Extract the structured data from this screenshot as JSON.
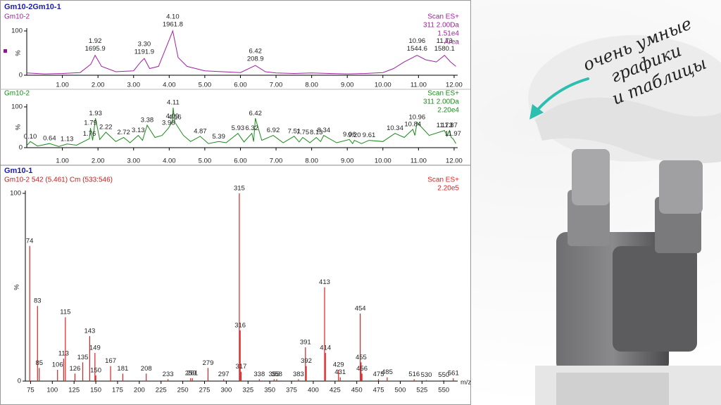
{
  "window_title": "Gm10-2Gm10-1",
  "caption": [
    "очень умные",
    "графики",
    "и таблицы"
  ],
  "chart_data": [
    {
      "type": "line",
      "title": "Gm10-2",
      "info": [
        "Scan ES+",
        "311 2.00Da",
        "1.51e4",
        "Area"
      ],
      "xlim": [
        0,
        12.1
      ],
      "xticks": [
        {
          "value": 1,
          "label": "1.00"
        },
        {
          "value": 2,
          "label": "2.00"
        },
        {
          "value": 3,
          "label": "3.00"
        },
        {
          "value": 4,
          "label": "4.00"
        },
        {
          "value": 5,
          "label": "5.00"
        },
        {
          "value": 6,
          "label": "6.00"
        },
        {
          "value": 7,
          "label": "7.00"
        },
        {
          "value": 8,
          "label": "8.00"
        },
        {
          "value": 9,
          "label": "9.00"
        },
        {
          "value": 10,
          "label": "10.00"
        },
        {
          "value": 11,
          "label": "11.00"
        },
        {
          "value": 12,
          "label": "12.00"
        }
      ],
      "ylim": [
        0,
        100
      ],
      "yticks": [
        0,
        100
      ],
      "ylabel": "%",
      "series": [
        {
          "color": "#a020a0",
          "x": [
            0.0,
            0.5,
            1.0,
            1.5,
            1.8,
            1.92,
            2.1,
            2.5,
            3.0,
            3.2,
            3.3,
            3.45,
            3.7,
            3.9,
            4.1,
            4.25,
            4.5,
            5.0,
            5.5,
            6.0,
            6.42,
            6.7,
            7.0,
            7.5,
            8.0,
            8.5,
            9.0,
            9.5,
            10.0,
            10.3,
            10.6,
            10.96,
            11.2,
            11.5,
            11.73,
            11.9,
            12.05
          ],
          "values": [
            5,
            3,
            4,
            6,
            25,
            45,
            20,
            8,
            10,
            30,
            38,
            15,
            20,
            60,
            100,
            40,
            20,
            10,
            8,
            6,
            22,
            8,
            5,
            4,
            5,
            4,
            3,
            4,
            6,
            15,
            30,
            45,
            35,
            30,
            45,
            30,
            20
          ]
        }
      ],
      "peaks": [
        {
          "x": 1.92,
          "label": "1.92",
          "area": 1695.9,
          "y": 45
        },
        {
          "x": 3.3,
          "label": "3.30",
          "area": 1191.9,
          "y": 38
        },
        {
          "x": 4.1,
          "label": "4.10",
          "area": 1961.8,
          "y": 100
        },
        {
          "x": 6.42,
          "label": "6.42",
          "area": 208.9,
          "y": 22
        },
        {
          "x": 10.96,
          "label": "10.96",
          "area": 1544.6,
          "y": 45
        },
        {
          "x": 11.73,
          "label": "11.73",
          "area": 1580.1,
          "y": 45
        }
      ]
    },
    {
      "type": "line",
      "title": "Gm10-2",
      "info": [
        "Scan ES+",
        "311 2.00Da",
        "2.20e4"
      ],
      "xlim": [
        0,
        12.1
      ],
      "xticks": [
        {
          "value": 1,
          "label": "1.00"
        },
        {
          "value": 2,
          "label": "2.00"
        },
        {
          "value": 3,
          "label": "3.00"
        },
        {
          "value": 4,
          "label": "4.00"
        },
        {
          "value": 5,
          "label": "5.00"
        },
        {
          "value": 6,
          "label": "6.00"
        },
        {
          "value": 7,
          "label": "7.00"
        },
        {
          "value": 8,
          "label": "8.00"
        },
        {
          "value": 9,
          "label": "9.00"
        },
        {
          "value": 10,
          "label": "10.00"
        },
        {
          "value": 11,
          "label": "11.00"
        },
        {
          "value": 12,
          "label": "12.00"
        }
      ],
      "ylim": [
        0,
        100
      ],
      "yticks": [
        0,
        100
      ],
      "ylabel": "%",
      "series": [
        {
          "color": "#1a8a1a",
          "x": [
            0.0,
            0.1,
            0.3,
            0.64,
            0.9,
            1.13,
            1.4,
            1.76,
            1.79,
            1.85,
            1.93,
            2.05,
            2.22,
            2.5,
            2.72,
            2.9,
            3.13,
            3.25,
            3.38,
            3.6,
            3.8,
            3.98,
            4.09,
            4.11,
            4.16,
            4.4,
            4.6,
            4.87,
            5.1,
            5.39,
            5.6,
            5.93,
            6.1,
            6.32,
            6.37,
            6.42,
            6.6,
            6.92,
            7.2,
            7.51,
            7.65,
            7.75,
            7.95,
            8.13,
            8.25,
            8.34,
            8.7,
            9.06,
            9.15,
            9.2,
            9.4,
            9.61,
            10.0,
            10.34,
            10.6,
            10.84,
            10.9,
            10.96,
            11.3,
            11.73,
            11.8,
            11.87,
            11.92,
            11.97,
            12.05
          ],
          "values": [
            5,
            15,
            4,
            10,
            3,
            9,
            6,
            22,
            48,
            18,
            72,
            20,
            38,
            15,
            25,
            12,
            30,
            18,
            55,
            25,
            30,
            48,
            65,
            98,
            62,
            30,
            15,
            28,
            10,
            15,
            12,
            35,
            14,
            35,
            15,
            72,
            18,
            30,
            12,
            28,
            14,
            25,
            12,
            25,
            15,
            30,
            12,
            20,
            10,
            18,
            10,
            18,
            15,
            35,
            25,
            45,
            30,
            62,
            30,
            42,
            28,
            42,
            25,
            22,
            10
          ]
        }
      ],
      "peaks": [
        {
          "x": 0.1,
          "label": "0.10",
          "y": 15
        },
        {
          "x": 0.64,
          "label": "0.64",
          "y": 10
        },
        {
          "x": 1.13,
          "label": "1.13",
          "y": 9
        },
        {
          "x": 1.76,
          "label": "1.76",
          "y": 22
        },
        {
          "x": 1.79,
          "label": "1.79",
          "y": 48
        },
        {
          "x": 1.93,
          "label": "1.93",
          "y": 72
        },
        {
          "x": 2.22,
          "label": "2.22",
          "y": 38
        },
        {
          "x": 2.72,
          "label": "2.72",
          "y": 25
        },
        {
          "x": 3.13,
          "label": "3.13",
          "y": 30
        },
        {
          "x": 3.38,
          "label": "3.38",
          "y": 55
        },
        {
          "x": 3.98,
          "label": "3.98",
          "y": 48
        },
        {
          "x": 4.09,
          "label": "4.09",
          "y": 65
        },
        {
          "x": 4.11,
          "label": "4.11",
          "y": 98
        },
        {
          "x": 4.16,
          "label": "4.16",
          "y": 62
        },
        {
          "x": 4.87,
          "label": "4.87",
          "y": 28
        },
        {
          "x": 5.39,
          "label": "5.39",
          "y": 15
        },
        {
          "x": 5.93,
          "label": "5.93",
          "y": 35
        },
        {
          "x": 6.32,
          "label": "6.32",
          "y": 35
        },
        {
          "x": 6.42,
          "label": "6.42",
          "y": 72
        },
        {
          "x": 6.92,
          "label": "6.92",
          "y": 30
        },
        {
          "x": 7.51,
          "label": "7.51",
          "y": 28
        },
        {
          "x": 7.75,
          "label": "7.75",
          "y": 25
        },
        {
          "x": 8.13,
          "label": "8.13",
          "y": 25
        },
        {
          "x": 8.34,
          "label": "8.34",
          "y": 30
        },
        {
          "x": 9.06,
          "label": "9.06",
          "y": 20
        },
        {
          "x": 9.2,
          "label": "9.20",
          "y": 18
        },
        {
          "x": 9.61,
          "label": "9.61",
          "y": 18
        },
        {
          "x": 10.34,
          "label": "10.34",
          "y": 35
        },
        {
          "x": 10.84,
          "label": "10.84",
          "y": 45
        },
        {
          "x": 10.96,
          "label": "10.96",
          "y": 62
        },
        {
          "x": 11.73,
          "label": "11.73",
          "y": 42
        },
        {
          "x": 11.87,
          "label": "11.87",
          "y": 42
        },
        {
          "x": 11.97,
          "label": "11.97",
          "y": 22
        }
      ]
    },
    {
      "type": "stem",
      "title": "Gm10-1",
      "subtitle": "Gm10-2 542 (5.461) Cm (533:546)",
      "info": [
        "Scan ES+",
        "2.20e5"
      ],
      "xlabel": "m/z",
      "color": "#e02020",
      "xlim": [
        69,
        566
      ],
      "xticks": [
        75,
        100,
        125,
        150,
        175,
        200,
        225,
        250,
        275,
        300,
        325,
        350,
        375,
        400,
        425,
        450,
        475,
        500,
        525,
        550
      ],
      "ylim": [
        0,
        100
      ],
      "yticks": [
        0,
        100
      ],
      "ylabel": "%",
      "x": [
        74,
        83,
        85,
        106,
        113,
        115,
        126,
        135,
        143,
        149,
        150,
        167,
        181,
        208,
        233,
        259,
        261,
        279,
        297,
        315,
        316,
        317,
        338,
        355,
        358,
        383,
        391,
        392,
        413,
        414,
        429,
        431,
        454,
        455,
        456,
        475,
        485,
        516,
        530,
        550,
        561
      ],
      "values": [
        72,
        40,
        7,
        6,
        12,
        34,
        4,
        10,
        24,
        15,
        3,
        8,
        4,
        4,
        1,
        1.5,
        1.5,
        7,
        1,
        100,
        27,
        5,
        1,
        1,
        1,
        1,
        18,
        8,
        50,
        15,
        6,
        2,
        36,
        10,
        4,
        1,
        2,
        1,
        0.5,
        0.5,
        1.5
      ]
    }
  ]
}
